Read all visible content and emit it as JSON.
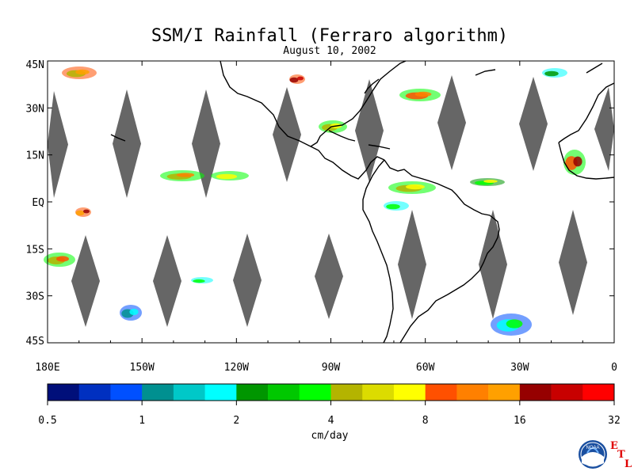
{
  "title": "SSM/I Rainfall (Ferraro algorithm)",
  "subtitle": "August 10, 2002",
  "map": {
    "lon_range": [
      -180,
      0
    ],
    "lat_range": [
      -45,
      45
    ],
    "lat_ticks": [
      {
        "value": 45,
        "label": "45N"
      },
      {
        "value": 30,
        "label": "30N"
      },
      {
        "value": 15,
        "label": "15N"
      },
      {
        "value": 0,
        "label": "EQ"
      },
      {
        "value": -15,
        "label": "15S"
      },
      {
        "value": -30,
        "label": "30S"
      },
      {
        "value": -45,
        "label": "45S"
      }
    ],
    "lon_ticks": [
      {
        "value": -180,
        "label": "180E"
      },
      {
        "value": -150,
        "label": "150W"
      },
      {
        "value": -120,
        "label": "120W"
      },
      {
        "value": -90,
        "label": "90W"
      },
      {
        "value": -60,
        "label": "60W"
      },
      {
        "value": -30,
        "label": "30W"
      },
      {
        "value": 0,
        "label": "0"
      }
    ],
    "no_data_color": "#666666",
    "coast_color": "#000000"
  },
  "colorbar": {
    "unit": "cm/day",
    "colors": [
      "#000f7a",
      "#0030c0",
      "#0050ff",
      "#009090",
      "#00c8c8",
      "#00ffff",
      "#009600",
      "#00c800",
      "#00ff00",
      "#b4b400",
      "#dcdc00",
      "#ffff00",
      "#ff5000",
      "#ff8000",
      "#ffa000",
      "#960000",
      "#c80000",
      "#ff0000"
    ],
    "tick_labels": [
      "0.5",
      "1",
      "2",
      "4",
      "8",
      "16",
      "32"
    ]
  },
  "logo": {
    "seal_text": "NOAA",
    "letters": [
      "E",
      "T",
      "L"
    ],
    "letter_color": "#e00000"
  }
}
